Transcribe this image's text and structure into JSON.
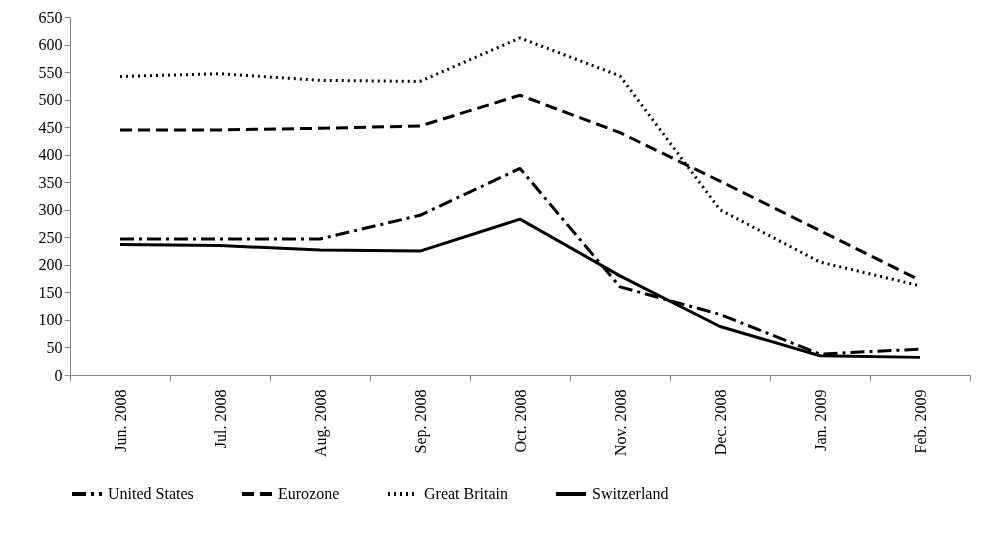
{
  "chart_data": {
    "type": "line",
    "categories": [
      "Jun. 2008",
      "Jul. 2008",
      "Aug. 2008",
      "Sep. 2008",
      "Oct. 2008",
      "Nov. 2008",
      "Dec. 2008",
      "Jan. 2009",
      "Feb. 2009"
    ],
    "series": [
      {
        "name": "United States",
        "color": "#000000",
        "line_style": "dashdot",
        "values": [
          247,
          247,
          247,
          290,
          375,
          160,
          110,
          38,
          47
        ]
      },
      {
        "name": "Eurozone",
        "color": "#000000",
        "line_style": "dashed",
        "values": [
          445,
          445,
          448,
          452,
          508,
          440,
          352,
          262,
          172
        ]
      },
      {
        "name": "Great Britain",
        "color": "#000000",
        "line_style": "dotted",
        "values": [
          542,
          547,
          535,
          533,
          612,
          543,
          300,
          205,
          162
        ]
      },
      {
        "name": "Switzerland",
        "color": "#000000",
        "line_style": "solid",
        "values": [
          237,
          235,
          227,
          225,
          283,
          180,
          88,
          35,
          32
        ]
      }
    ],
    "ylim": [
      0,
      650
    ],
    "yticks": [
      0,
      50,
      100,
      150,
      200,
      250,
      300,
      350,
      400,
      450,
      500,
      550,
      600,
      650
    ],
    "grid": false,
    "legend": "bottom",
    "marker": "none"
  }
}
